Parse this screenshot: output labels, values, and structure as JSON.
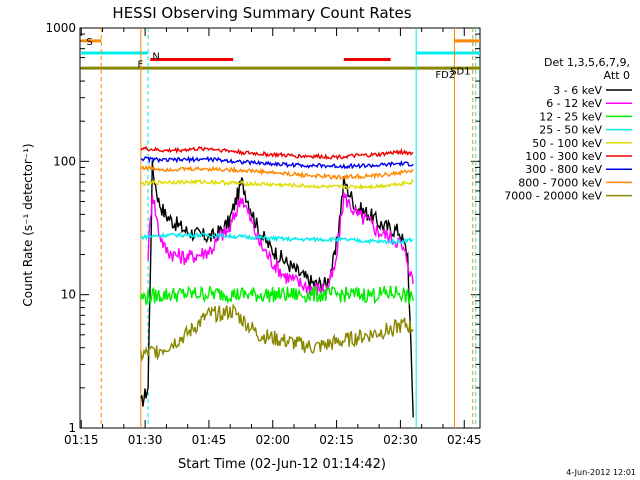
{
  "chart_data": {
    "type": "line",
    "title": "HESSI Observing Summary Count Rates",
    "xlabel": "Start Time (02-Jun-12 01:14:42)",
    "ylabel": "Count Rate (s⁻¹ detector⁻¹)",
    "y_scale": "log",
    "xlim_minutes_after_0114": [
      0,
      94
    ],
    "ylim": [
      1,
      1000
    ],
    "x_ticks": [
      {
        "label": "01:15",
        "min": 0.3
      },
      {
        "label": "01:30",
        "min": 15.3
      },
      {
        "label": "01:45",
        "min": 30.3
      },
      {
        "label": "02:00",
        "min": 45.3
      },
      {
        "label": "02:15",
        "min": 60.3
      },
      {
        "label": "02:30",
        "min": 75.3
      },
      {
        "label": "02:45",
        "min": 90.3
      }
    ],
    "y_ticks": [
      {
        "label": "1",
        "value": 1
      },
      {
        "label": "10",
        "value": 10
      },
      {
        "label": "100",
        "value": 100
      },
      {
        "label": "1000",
        "value": 1000
      }
    ],
    "legend": {
      "placement": "right",
      "header": [
        "Det 1,3,5,6,7,9,",
        "Att 0"
      ],
      "entries": [
        {
          "label": "3 - 6 keV",
          "color": "#000000"
        },
        {
          "label": "6 - 12 keV",
          "color": "#ff00ff"
        },
        {
          "label": "12 - 25 keV",
          "color": "#00ee00"
        },
        {
          "label": "25 - 50 keV",
          "color": "#00eeee"
        },
        {
          "label": "50 - 100 keV",
          "color": "#dddd00"
        },
        {
          "label": "100 - 300 keV",
          "color": "#ee0000"
        },
        {
          "label": "300 - 800 keV",
          "color": "#0000ee"
        },
        {
          "label": "800 - 7000 keV",
          "color": "#ff8800"
        },
        {
          "label": "7000 - 20000 keV",
          "color": "#888800"
        }
      ]
    },
    "series": [
      {
        "name": "3 - 6 keV",
        "color": "#000000",
        "x": [
          14.3,
          16,
          17,
          18.5,
          20,
          22,
          25,
          28,
          31,
          33,
          35,
          38,
          42,
          45,
          48,
          52,
          55,
          58,
          60,
          62,
          65,
          68,
          70,
          72,
          75,
          77,
          78.3
        ],
        "y": [
          1.5,
          2,
          90,
          50,
          40,
          35,
          30,
          28,
          27,
          30,
          35,
          70,
          30,
          22,
          18,
          14,
          12,
          12,
          20,
          70,
          45,
          40,
          35,
          32,
          30,
          20,
          1.2
        ]
      },
      {
        "name": "6 - 12 keV",
        "color": "#ff00ff",
        "x": [
          16,
          17,
          18.5,
          20,
          22,
          25,
          28,
          31,
          33,
          35,
          38,
          42,
          45,
          48,
          52,
          55,
          58,
          60,
          62,
          65,
          68,
          70,
          72,
          75,
          77,
          78.3
        ],
        "y": [
          20,
          60,
          30,
          22,
          20,
          19,
          20,
          22,
          28,
          30,
          55,
          25,
          18,
          14,
          12,
          11,
          11,
          16,
          55,
          40,
          35,
          30,
          28,
          25,
          18,
          12
        ]
      },
      {
        "name": "12 - 25 keV",
        "color": "#00ee00",
        "x": [
          14.3,
          20,
          30,
          40,
          50,
          60,
          70,
          75,
          78.3
        ],
        "y": [
          9.5,
          10,
          10.2,
          10,
          10,
          10,
          10,
          10.5,
          9
        ]
      },
      {
        "name": "25 - 50 keV",
        "color": "#00eeee",
        "x": [
          14.3,
          20,
          30,
          40,
          50,
          60,
          70,
          75,
          78.3
        ],
        "y": [
          27,
          28,
          28,
          27,
          26,
          26,
          25,
          25,
          26
        ]
      },
      {
        "name": "50 - 100 keV",
        "color": "#dddd00",
        "x": [
          14.3,
          20,
          30,
          40,
          50,
          60,
          70,
          75,
          78.3
        ],
        "y": [
          68,
          70,
          70,
          68,
          66,
          64,
          65,
          68,
          70
        ]
      },
      {
        "name": "100 - 300 keV",
        "color": "#ee0000",
        "x": [
          14.3,
          20,
          30,
          40,
          50,
          60,
          70,
          75,
          78.3
        ],
        "y": [
          125,
          120,
          125,
          115,
          110,
          108,
          112,
          118,
          115
        ]
      },
      {
        "name": "300 - 800 keV",
        "color": "#0000ee",
        "x": [
          14.3,
          20,
          30,
          40,
          50,
          60,
          70,
          75,
          78.3
        ],
        "y": [
          105,
          102,
          104,
          98,
          94,
          92,
          93,
          96,
          95
        ]
      },
      {
        "name": "800 - 7000 keV",
        "color": "#ff8800",
        "x": [
          14.3,
          20,
          30,
          40,
          50,
          60,
          70,
          75,
          78.3
        ],
        "y": [
          90,
          87,
          88,
          85,
          80,
          76,
          78,
          82,
          85
        ]
      },
      {
        "name": "7000 - 20000 keV",
        "color": "#888800",
        "x": [
          14.3,
          20,
          25,
          30,
          36,
          42,
          48,
          55,
          62,
          68,
          73,
          76.5,
          78.3
        ],
        "y": [
          3.5,
          4,
          5,
          7,
          7.5,
          5,
          4.5,
          4,
          4.5,
          5,
          5.5,
          6,
          5.5
        ]
      }
    ],
    "flag_bars": [
      {
        "label": "S",
        "color": "#ff8800",
        "x": [
          0.3,
          5
        ]
      },
      {
        "label": "S",
        "color": "#ff8800",
        "x": [
          88,
          94
        ]
      },
      {
        "label": "N",
        "color": "#00eeee",
        "x": [
          0.3,
          16
        ]
      },
      {
        "label": "N",
        "color": "#00eeee",
        "x": [
          79,
          94
        ]
      },
      {
        "label": "F",
        "color": "#ee0000",
        "x": [
          16.5,
          36
        ]
      },
      {
        "label": "F",
        "color": "#ee0000",
        "x": [
          62,
          73
        ]
      },
      {
        "label": "SD1",
        "color": "#888800",
        "x": [
          0.3,
          94
        ]
      }
    ],
    "annotations": [
      "S",
      "N",
      "F",
      "SD1",
      "FD2"
    ],
    "timestamp": "4-Jun-2012 12:01"
  }
}
